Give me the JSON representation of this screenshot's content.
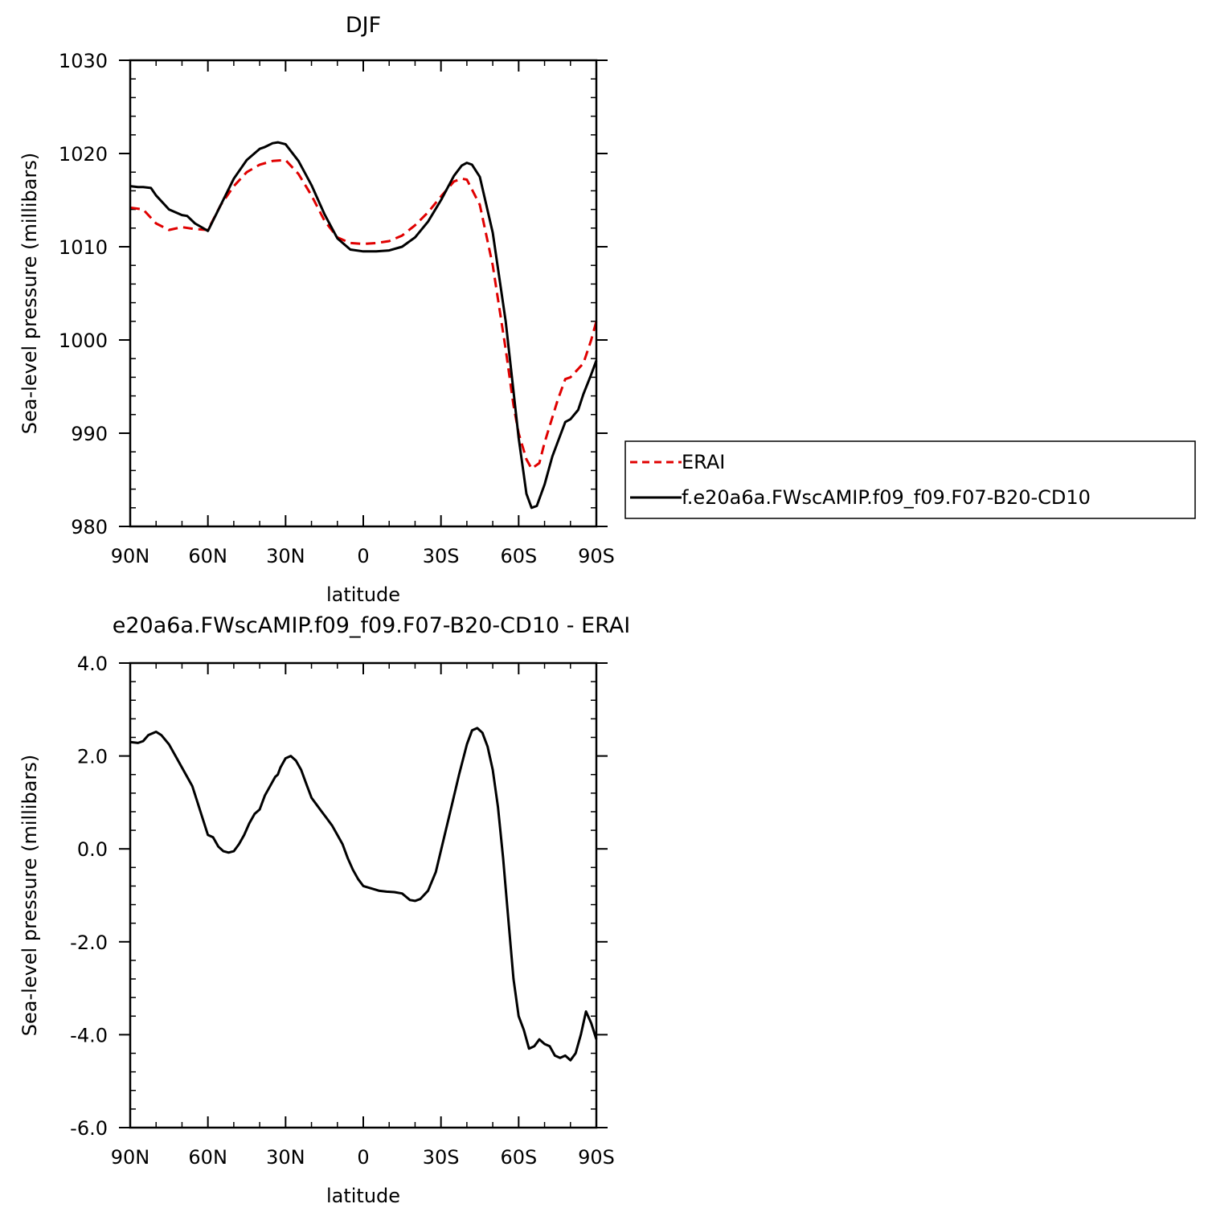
{
  "chart_data": [
    {
      "type": "line",
      "title": "DJF",
      "xlabel": "latitude",
      "ylabel": "Sea-level pressure (millibars)",
      "xlim": [
        90,
        -90
      ],
      "ylim": [
        980,
        1030
      ],
      "xticks": [
        90,
        60,
        30,
        0,
        -30,
        -60,
        -90
      ],
      "xtick_labels": [
        "90N",
        "60N",
        "30N",
        "0",
        "30S",
        "60S",
        "90S"
      ],
      "yticks": [
        980,
        990,
        1000,
        1010,
        1020,
        1030
      ],
      "ytick_labels": [
        "980",
        "990",
        "1000",
        "1010",
        "1020",
        "1030"
      ],
      "grid": false,
      "legend_position": "right",
      "series": [
        {
          "name": "ERAI",
          "color": "#e00000",
          "dash": "dashed",
          "x": [
            90,
            85,
            80,
            75,
            70,
            65,
            60,
            55,
            50,
            45,
            40,
            35,
            30,
            25,
            20,
            15,
            10,
            5,
            0,
            -5,
            -10,
            -15,
            -20,
            -25,
            -30,
            -35,
            -38,
            -40,
            -45,
            -50,
            -55,
            -58,
            -60,
            -63,
            -65,
            -68,
            -70,
            -75,
            -78,
            -80,
            -85,
            -88,
            -90
          ],
          "values": [
            1014.2,
            1014.0,
            1012.5,
            1011.8,
            1012.1,
            1011.9,
            1011.8,
            1014.5,
            1016.5,
            1018.0,
            1018.8,
            1019.2,
            1019.3,
            1017.8,
            1015.5,
            1012.8,
            1011.0,
            1010.4,
            1010.3,
            1010.4,
            1010.6,
            1011.2,
            1012.3,
            1013.7,
            1015.4,
            1017.0,
            1017.3,
            1017.2,
            1014.5,
            1008.0,
            999.0,
            993.0,
            990.0,
            987.2,
            986.2,
            986.8,
            989.0,
            993.5,
            995.8,
            996.0,
            997.5,
            1000.0,
            1002.0
          ]
        },
        {
          "name": "f.e20a6a.FWscAMIP.f09_f09.F07-B20-CD10",
          "color": "#000000",
          "dash": "solid",
          "x": [
            90,
            87,
            85,
            82,
            80,
            75,
            70,
            68,
            65,
            60,
            55,
            50,
            45,
            40,
            38,
            35,
            33,
            30,
            25,
            20,
            15,
            10,
            5,
            0,
            -5,
            -10,
            -15,
            -20,
            -25,
            -30,
            -35,
            -38,
            -40,
            -42,
            -45,
            -50,
            -55,
            -58,
            -60,
            -62,
            -63,
            -65,
            -67,
            -70,
            -73,
            -75,
            -78,
            -80,
            -83,
            -85,
            -88,
            -90
          ],
          "values": [
            1016.5,
            1016.4,
            1016.4,
            1016.3,
            1015.5,
            1014.0,
            1013.4,
            1013.3,
            1012.5,
            1011.7,
            1014.5,
            1017.3,
            1019.3,
            1020.5,
            1020.7,
            1021.1,
            1021.2,
            1021.0,
            1019.2,
            1016.6,
            1013.5,
            1010.9,
            1009.7,
            1009.5,
            1009.5,
            1009.6,
            1010.0,
            1011.0,
            1012.7,
            1015.0,
            1017.6,
            1018.7,
            1019.0,
            1018.8,
            1017.5,
            1011.5,
            1002.0,
            994.5,
            989.5,
            985.5,
            983.5,
            982.0,
            982.2,
            984.5,
            987.5,
            989.0,
            991.2,
            991.5,
            992.5,
            994.2,
            996.3,
            997.8
          ]
        }
      ]
    },
    {
      "type": "line",
      "title": "e20a6a.FWscAMIP.f09_f09.F07-B20-CD10 - ERAI",
      "xlabel": "latitude",
      "ylabel": "Sea-level pressure (millibars)",
      "xlim": [
        90,
        -90
      ],
      "ylim": [
        -6,
        4
      ],
      "xticks": [
        90,
        60,
        30,
        0,
        -30,
        -60,
        -90
      ],
      "xtick_labels": [
        "90N",
        "60N",
        "30N",
        "0",
        "30S",
        "60S",
        "90S"
      ],
      "yticks": [
        -6,
        -4,
        -2,
        0,
        2,
        4
      ],
      "ytick_labels": [
        "-6.0",
        "-4.0",
        "-2.0",
        "0.0",
        "2.0",
        "4.0"
      ],
      "grid": false,
      "series": [
        {
          "color": "#000000",
          "dash": "solid",
          "x": [
            90,
            87,
            85,
            83,
            80,
            78,
            75,
            72,
            70,
            68,
            66,
            64,
            62,
            60,
            58,
            56,
            54,
            52,
            50,
            48,
            46,
            44,
            42,
            40,
            38,
            36,
            34,
            33,
            32,
            30,
            28,
            26,
            24,
            22,
            20,
            18,
            16,
            14,
            12,
            10,
            8,
            6,
            4,
            2,
            0,
            -3,
            -6,
            -9,
            -12,
            -15,
            -18,
            -20,
            -22,
            -25,
            -28,
            -31,
            -34,
            -37,
            -40,
            -42,
            -44,
            -46,
            -48,
            -50,
            -52,
            -54,
            -56,
            -58,
            -60,
            -62,
            -64,
            -66,
            -68,
            -70,
            -72,
            -74,
            -76,
            -78,
            -80,
            -82,
            -84,
            -86,
            -88,
            -90
          ],
          "values": [
            2.3,
            2.28,
            2.32,
            2.45,
            2.52,
            2.45,
            2.25,
            1.95,
            1.75,
            1.55,
            1.35,
            1.0,
            0.65,
            0.3,
            0.25,
            0.05,
            -0.05,
            -0.08,
            -0.05,
            0.1,
            0.3,
            0.55,
            0.75,
            0.85,
            1.15,
            1.35,
            1.55,
            1.6,
            1.75,
            1.95,
            2.0,
            1.9,
            1.7,
            1.4,
            1.1,
            0.95,
            0.8,
            0.65,
            0.5,
            0.3,
            0.1,
            -0.2,
            -0.45,
            -0.65,
            -0.8,
            -0.85,
            -0.9,
            -0.92,
            -0.93,
            -0.96,
            -1.1,
            -1.12,
            -1.08,
            -0.9,
            -0.5,
            0.2,
            0.9,
            1.6,
            2.25,
            2.55,
            2.6,
            2.5,
            2.2,
            1.7,
            0.9,
            -0.2,
            -1.5,
            -2.8,
            -3.6,
            -3.9,
            -4.3,
            -4.25,
            -4.1,
            -4.2,
            -4.25,
            -4.45,
            -4.5,
            -4.45,
            -4.55,
            -4.4,
            -4.0,
            -3.5,
            -3.75,
            -4.1
          ]
        }
      ]
    }
  ]
}
